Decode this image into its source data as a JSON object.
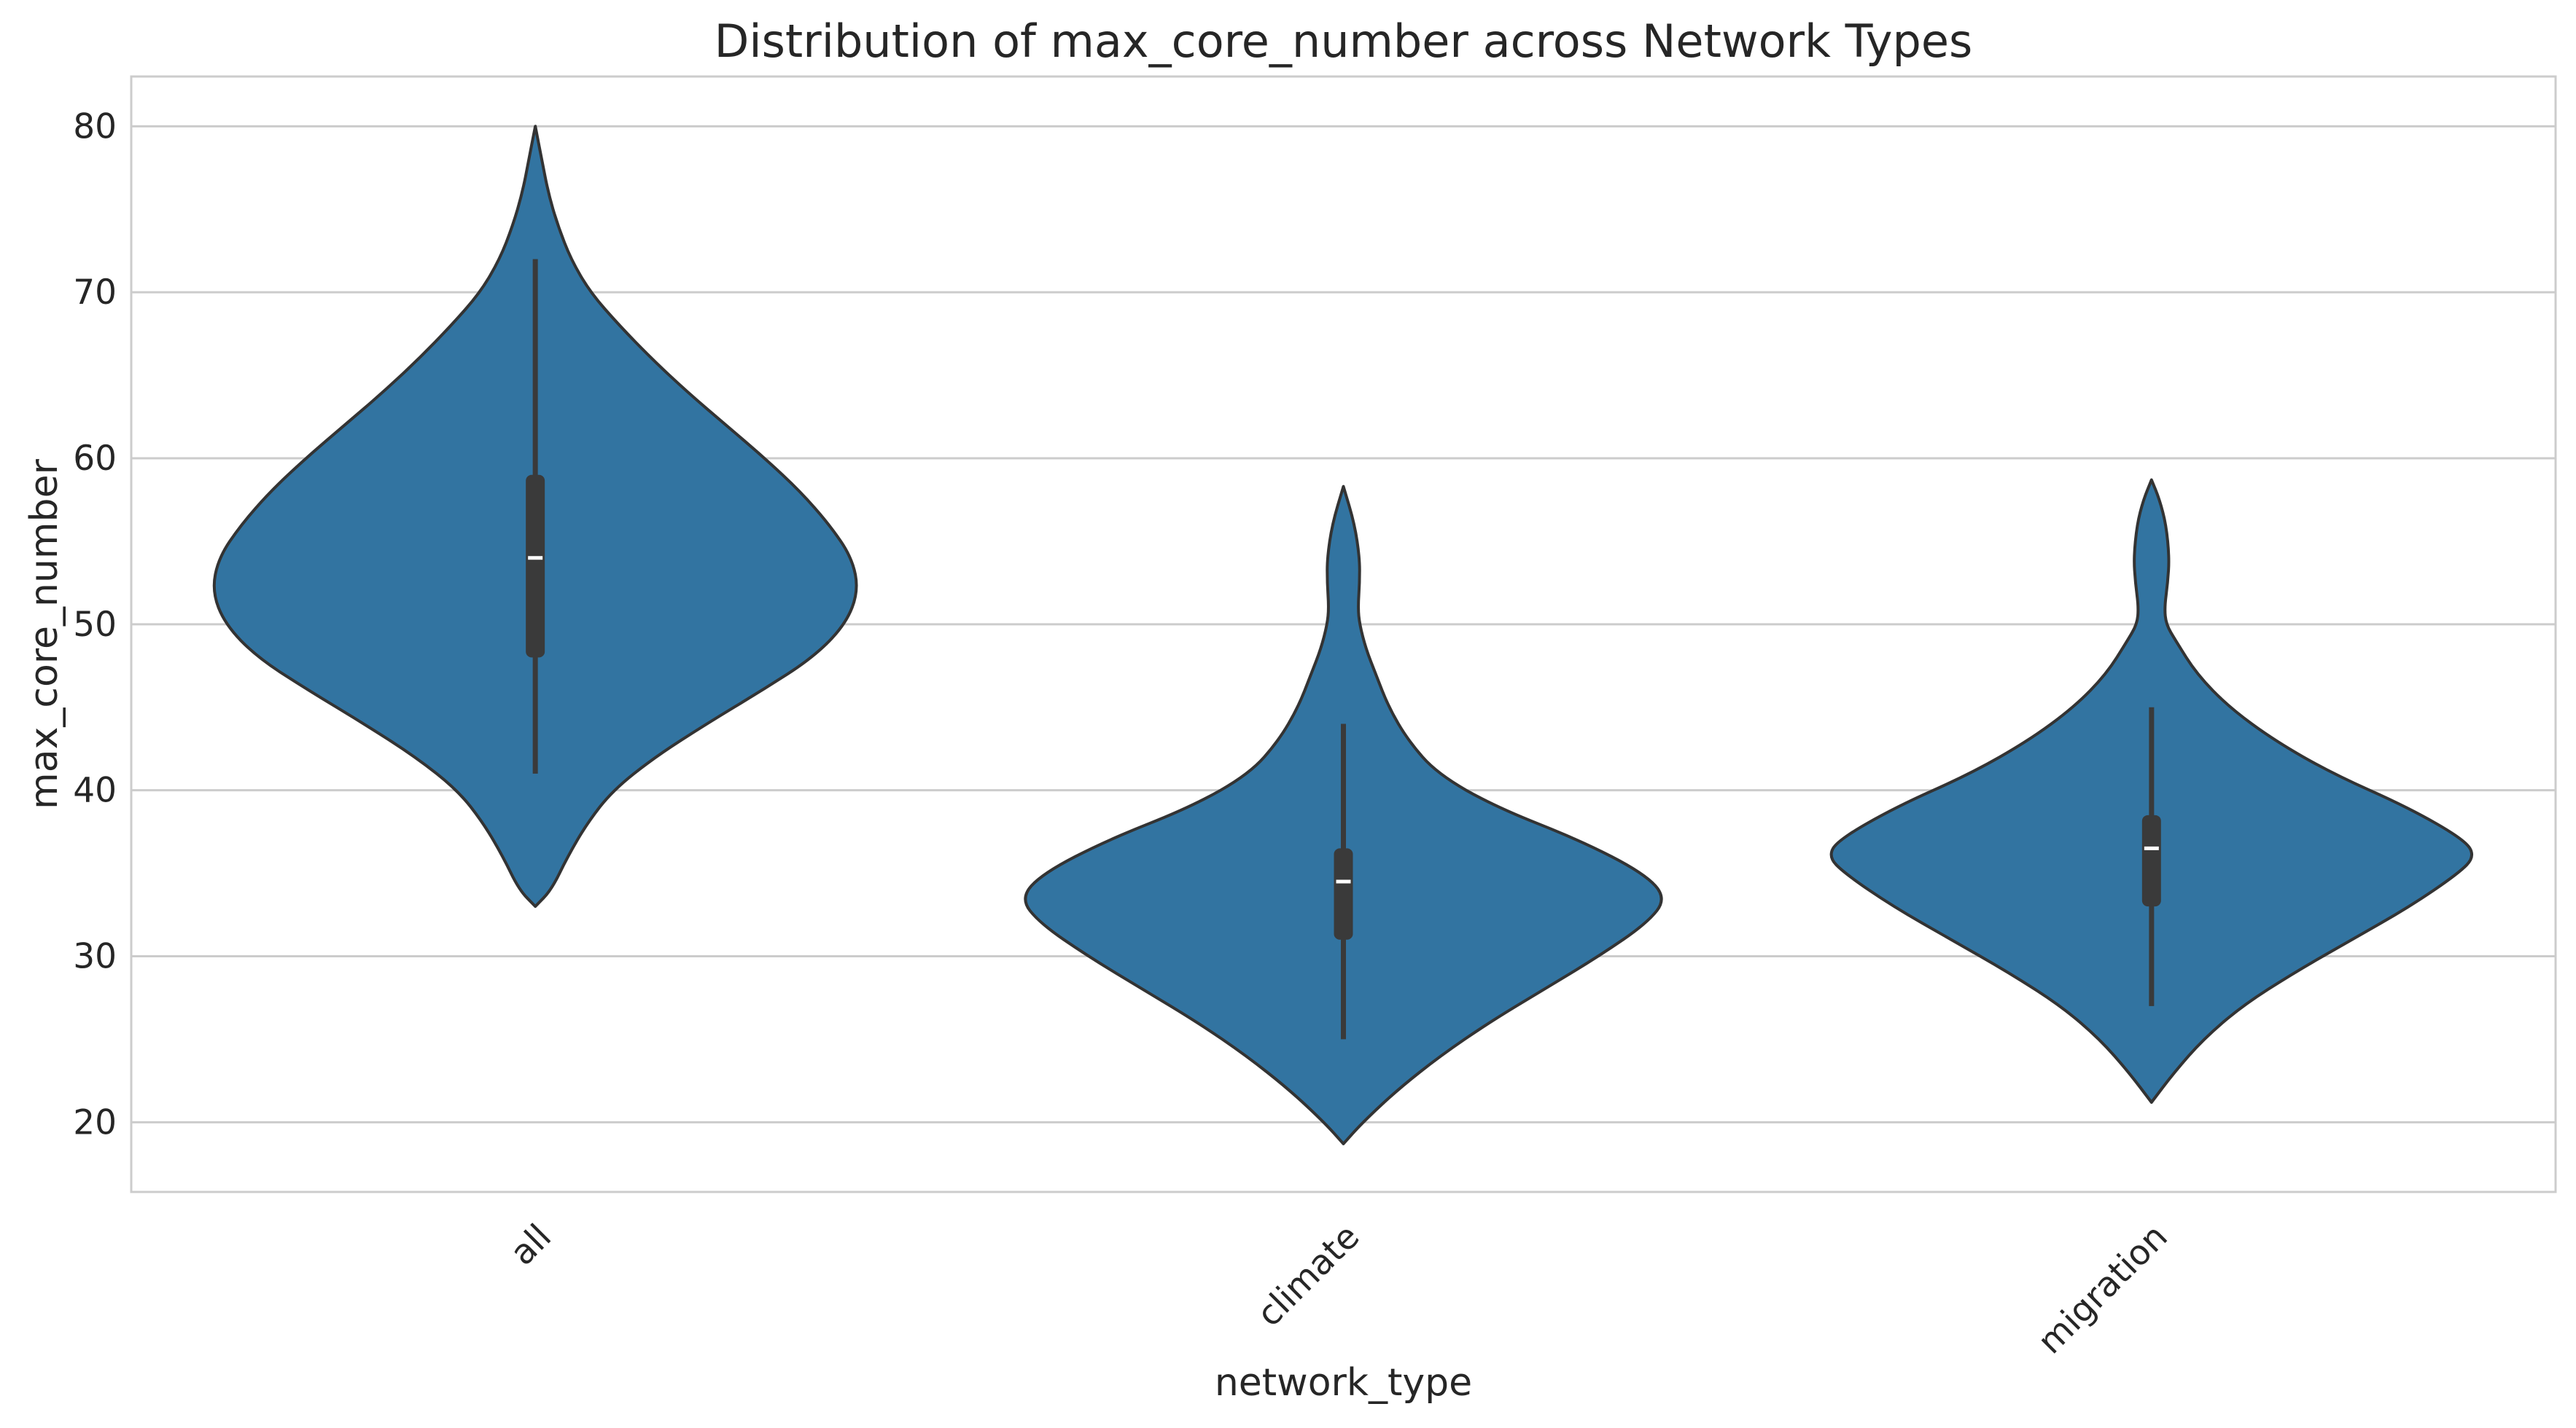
{
  "chart_data": {
    "type": "violin",
    "title": "Distribution of max_core_number across Network Types",
    "xlabel": "network_type",
    "ylabel": "max_core_number",
    "ylim": [
      15.8,
      83.0
    ],
    "yticks": [
      20,
      30,
      40,
      50,
      60,
      70,
      80
    ],
    "grid": true,
    "categories": [
      "all",
      "climate",
      "migration"
    ],
    "color": "#3274a1",
    "edge_color": "#333333",
    "box_color": "#3a3a3a",
    "median_color": "#ffffff",
    "violins": [
      {
        "category": "all",
        "range": [
          33.0,
          80.0
        ],
        "density_profile": [
          [
            33.0,
            0.0
          ],
          [
            34.0,
            0.05
          ],
          [
            36.0,
            0.1
          ],
          [
            38.0,
            0.16
          ],
          [
            40.0,
            0.24
          ],
          [
            42.0,
            0.37
          ],
          [
            44.0,
            0.53
          ],
          [
            46.0,
            0.7
          ],
          [
            48.0,
            0.86
          ],
          [
            50.0,
            0.96
          ],
          [
            52.0,
            1.0
          ],
          [
            54.0,
            0.98
          ],
          [
            56.0,
            0.91
          ],
          [
            58.0,
            0.82
          ],
          [
            60.0,
            0.71
          ],
          [
            62.0,
            0.59
          ],
          [
            64.0,
            0.47
          ],
          [
            66.0,
            0.36
          ],
          [
            68.0,
            0.26
          ],
          [
            70.0,
            0.17
          ],
          [
            72.0,
            0.11
          ],
          [
            74.0,
            0.07
          ],
          [
            76.0,
            0.04
          ],
          [
            78.0,
            0.02
          ],
          [
            80.0,
            0.0
          ]
        ],
        "whisker": [
          41,
          72
        ],
        "iqr": [
          48,
          59
        ],
        "median": 54
      },
      {
        "category": "climate",
        "range": [
          18.7,
          58.3
        ],
        "density_profile": [
          [
            18.7,
            0.0
          ],
          [
            20.0,
            0.06
          ],
          [
            22.0,
            0.17
          ],
          [
            24.0,
            0.3
          ],
          [
            26.0,
            0.45
          ],
          [
            28.0,
            0.62
          ],
          [
            30.0,
            0.79
          ],
          [
            32.0,
            0.94
          ],
          [
            33.5,
            1.0
          ],
          [
            35.0,
            0.93
          ],
          [
            37.0,
            0.73
          ],
          [
            39.0,
            0.47
          ],
          [
            41.0,
            0.29
          ],
          [
            43.0,
            0.2
          ],
          [
            45.0,
            0.14
          ],
          [
            47.0,
            0.1
          ],
          [
            48.5,
            0.07
          ],
          [
            50.0,
            0.05
          ],
          [
            51.0,
            0.045
          ],
          [
            52.5,
            0.05
          ],
          [
            54.0,
            0.05
          ],
          [
            56.0,
            0.035
          ],
          [
            58.3,
            0.0
          ]
        ],
        "whisker": [
          25,
          44
        ],
        "iqr": [
          31,
          36.5
        ],
        "median": 34.5
      },
      {
        "category": "migration",
        "range": [
          21.2,
          58.7
        ],
        "density_profile": [
          [
            21.2,
            0.0
          ],
          [
            23.0,
            0.07
          ],
          [
            25.0,
            0.16
          ],
          [
            27.0,
            0.28
          ],
          [
            29.0,
            0.44
          ],
          [
            31.0,
            0.62
          ],
          [
            33.0,
            0.8
          ],
          [
            35.0,
            0.95
          ],
          [
            36.0,
            1.0
          ],
          [
            37.0,
            0.97
          ],
          [
            39.0,
            0.79
          ],
          [
            41.0,
            0.56
          ],
          [
            43.0,
            0.38
          ],
          [
            45.0,
            0.24
          ],
          [
            47.0,
            0.14
          ],
          [
            49.0,
            0.075
          ],
          [
            50.0,
            0.045
          ],
          [
            51.0,
            0.04
          ],
          [
            52.5,
            0.05
          ],
          [
            54.0,
            0.055
          ],
          [
            56.0,
            0.045
          ],
          [
            57.5,
            0.025
          ],
          [
            58.7,
            0.0
          ]
        ],
        "whisker": [
          27,
          45
        ],
        "iqr": [
          33,
          38.5
        ],
        "median": 36.5
      }
    ]
  }
}
